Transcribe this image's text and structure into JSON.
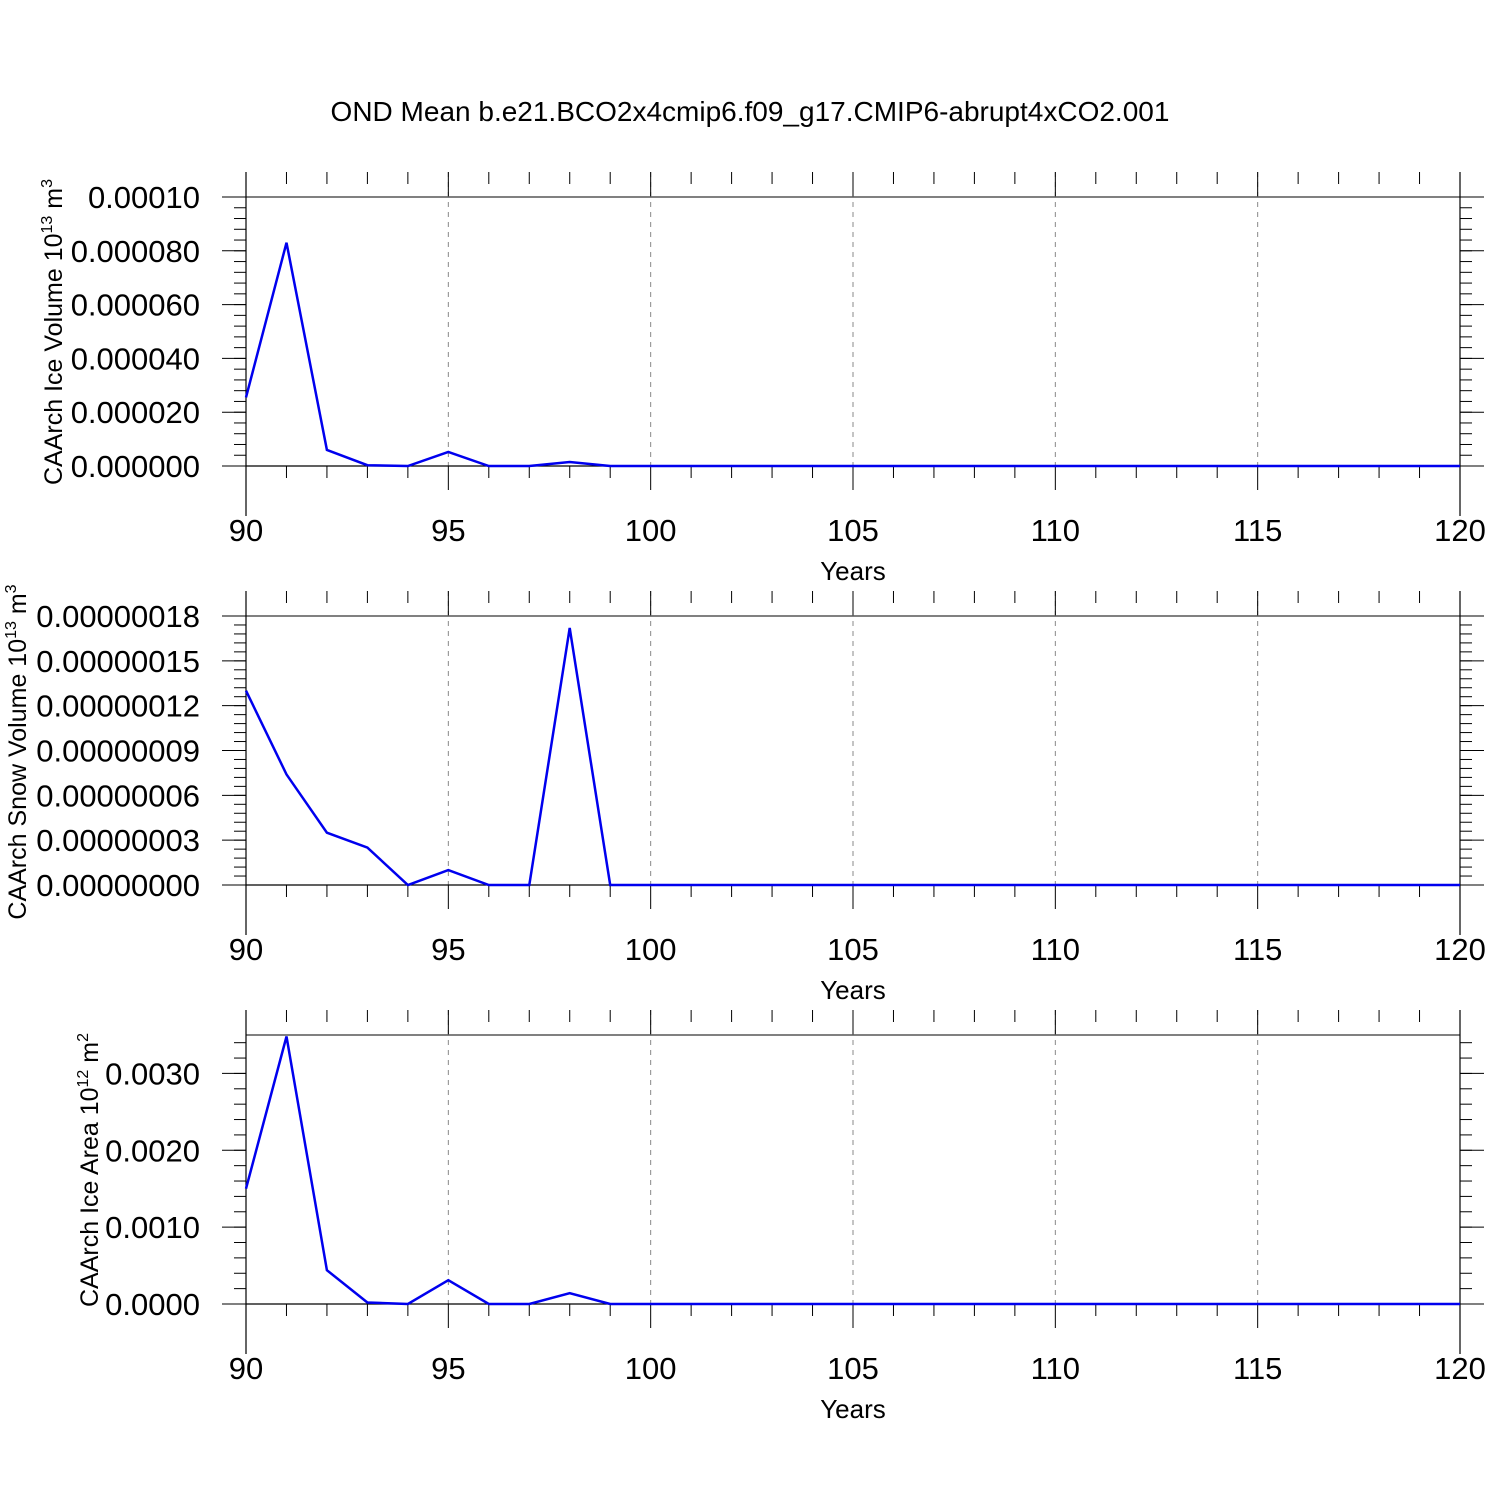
{
  "title": "OND Mean b.e21.BCO2x4cmip6.f09_g17.CMIP6-abrupt4xCO2.001",
  "colors": {
    "line": "#0000ee",
    "axis": "#000000",
    "grid": "#888888"
  },
  "chart_data": [
    {
      "type": "line",
      "xlabel": "Years",
      "ylabel_main": "CAArch Ice Volume 10",
      "ylabel_sup": "13",
      "ylabel_unit": " m",
      "ylabel_unit_sup": "3",
      "xlim": [
        90,
        120
      ],
      "ylim": [
        0,
        0.0001
      ],
      "xticks": [
        "90",
        "95",
        "100",
        "105",
        "110",
        "115",
        "120"
      ],
      "yticks": [
        {
          "value": 0.0,
          "label": "0.000000"
        },
        {
          "value": 2e-05,
          "label": "0.000020"
        },
        {
          "value": 4e-05,
          "label": "0.000040"
        },
        {
          "value": 6e-05,
          "label": "0.000060"
        },
        {
          "value": 8e-05,
          "label": "0.000080"
        },
        {
          "value": 0.0001,
          "label": "0.00010"
        }
      ],
      "grid": "dashed vertical at major x ticks",
      "x": [
        90,
        91,
        92,
        93,
        94,
        95,
        96,
        97,
        98,
        99,
        100,
        101,
        102,
        103,
        104,
        105,
        106,
        107,
        108,
        109,
        110,
        111,
        112,
        113,
        114,
        115,
        116,
        117,
        118,
        119,
        120
      ],
      "y": [
        2.55e-05,
        8.3e-05,
        6e-06,
        3e-07,
        0.0,
        5.2e-06,
        0.0,
        0.0,
        1.5e-06,
        0.0,
        0,
        0,
        0,
        0,
        0,
        0,
        0,
        0,
        0,
        0,
        0,
        0,
        0,
        0,
        0,
        0,
        0,
        0,
        0,
        0,
        0
      ]
    },
    {
      "type": "line",
      "xlabel": "Years",
      "ylabel_main": "CAArch Snow Volume 10",
      "ylabel_sup": "13",
      "ylabel_unit": " m",
      "ylabel_unit_sup": "3",
      "xlim": [
        90,
        120
      ],
      "ylim": [
        0,
        1.8e-07
      ],
      "xticks": [
        "90",
        "95",
        "100",
        "105",
        "110",
        "115",
        "120"
      ],
      "yticks": [
        {
          "value": 0.0,
          "label": "0.00000000"
        },
        {
          "value": 3e-08,
          "label": "0.00000003"
        },
        {
          "value": 6e-08,
          "label": "0.00000006"
        },
        {
          "value": 9e-08,
          "label": "0.00000009"
        },
        {
          "value": 1.2e-07,
          "label": "0.00000012"
        },
        {
          "value": 1.5e-07,
          "label": "0.00000015"
        },
        {
          "value": 1.8e-07,
          "label": "0.00000018"
        }
      ],
      "grid": "dashed vertical at major x ticks",
      "x": [
        90,
        91,
        92,
        93,
        94,
        95,
        96,
        97,
        98,
        99,
        100,
        101,
        102,
        103,
        104,
        105,
        106,
        107,
        108,
        109,
        110,
        111,
        112,
        113,
        114,
        115,
        116,
        117,
        118,
        119,
        120
      ],
      "y": [
        1.3e-07,
        7.4e-08,
        3.5e-08,
        2.5e-08,
        0.0,
        1e-08,
        0.0,
        0.0,
        1.72e-07,
        0.0,
        0,
        0,
        0,
        0,
        0,
        0,
        0,
        0,
        0,
        0,
        0,
        0,
        0,
        0,
        0,
        0,
        0,
        0,
        0,
        0,
        0
      ]
    },
    {
      "type": "line",
      "xlabel": "Years",
      "ylabel_main": "CAArch Ice Area 10",
      "ylabel_sup": "12",
      "ylabel_unit": " m",
      "ylabel_unit_sup": "2",
      "xlim": [
        90,
        120
      ],
      "ylim": [
        0,
        0.0035
      ],
      "xticks": [
        "90",
        "95",
        "100",
        "105",
        "110",
        "115",
        "120"
      ],
      "yticks": [
        {
          "value": 0.0,
          "label": "0.0000"
        },
        {
          "value": 0.001,
          "label": "0.0010"
        },
        {
          "value": 0.002,
          "label": "0.0020"
        },
        {
          "value": 0.003,
          "label": "0.0030"
        }
      ],
      "grid": "dashed vertical at major x ticks",
      "x": [
        90,
        91,
        92,
        93,
        94,
        95,
        96,
        97,
        98,
        99,
        100,
        101,
        102,
        103,
        104,
        105,
        106,
        107,
        108,
        109,
        110,
        111,
        112,
        113,
        114,
        115,
        116,
        117,
        118,
        119,
        120
      ],
      "y": [
        0.0015,
        0.00348,
        0.00044,
        2e-05,
        0.0,
        0.00031,
        0.0,
        0.0,
        0.00014,
        0.0,
        0,
        0,
        0,
        0,
        0,
        0,
        0,
        0,
        0,
        0,
        0,
        0,
        0,
        0,
        0,
        0,
        0,
        0,
        0,
        0,
        0
      ]
    }
  ]
}
